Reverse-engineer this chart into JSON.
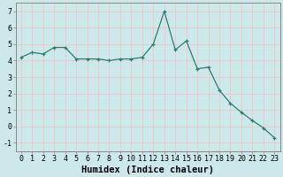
{
  "x": [
    0,
    1,
    2,
    3,
    4,
    5,
    6,
    7,
    8,
    9,
    10,
    11,
    12,
    13,
    14,
    15,
    16,
    17,
    18,
    19,
    20,
    21,
    22,
    23
  ],
  "y": [
    4.2,
    4.5,
    4.4,
    4.8,
    4.8,
    4.1,
    4.1,
    4.1,
    4.0,
    4.1,
    4.1,
    4.2,
    5.0,
    7.0,
    4.65,
    5.2,
    3.5,
    3.6,
    2.2,
    1.4,
    0.85,
    0.35,
    -0.1,
    -0.7
  ],
  "xlabel": "Humidex (Indice chaleur)",
  "ylabel": "",
  "xlim": [
    -0.5,
    23.5
  ],
  "ylim": [
    -1.5,
    7.5
  ],
  "yticks": [
    -1,
    0,
    1,
    2,
    3,
    4,
    5,
    6,
    7
  ],
  "xticks": [
    0,
    1,
    2,
    3,
    4,
    5,
    6,
    7,
    8,
    9,
    10,
    11,
    12,
    13,
    14,
    15,
    16,
    17,
    18,
    19,
    20,
    21,
    22,
    23
  ],
  "line_color": "#2e7d6e",
  "marker": "+",
  "bg_color": "#cce8e8",
  "grid_color_major": "#e8c8c8",
  "grid_color_minor": "#e8c8c8",
  "tick_label_fontsize": 6.0,
  "xlabel_fontsize": 7.5,
  "spine_color": "#888888"
}
